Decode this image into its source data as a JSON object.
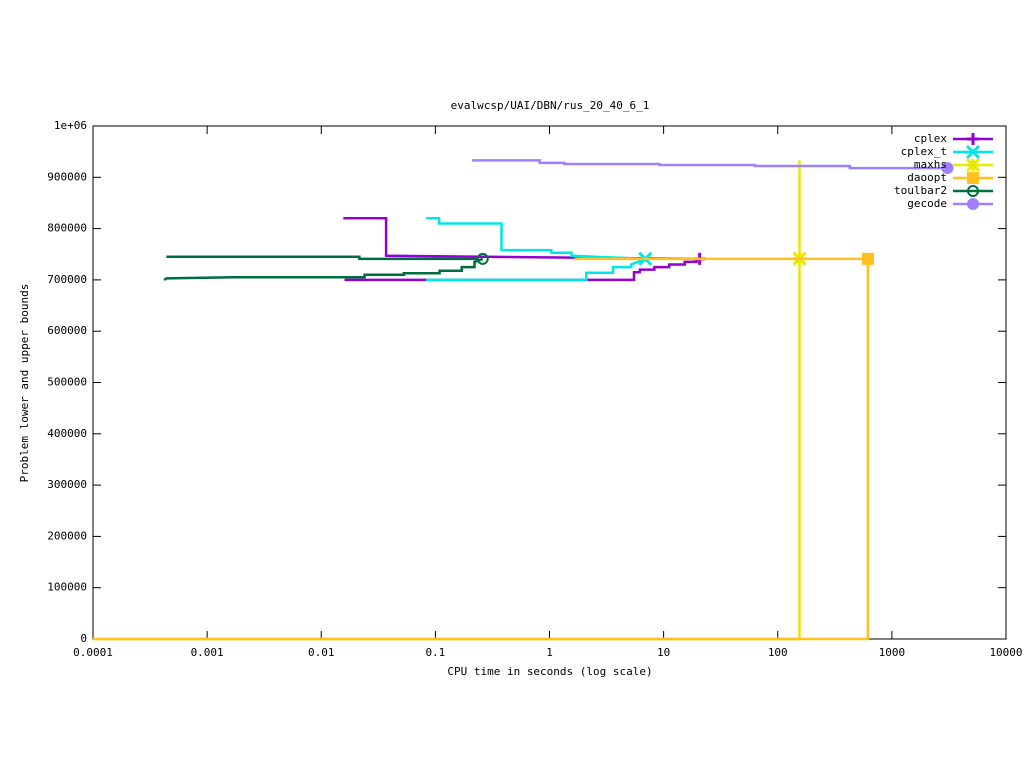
{
  "chart_data": {
    "type": "line",
    "title": "evalwcsp/UAI/DBN/rus_20_40_6_1",
    "x_label": "CPU time in seconds (log scale)",
    "y_label": "Problem lower and upper bounds",
    "xscale": "log",
    "xlim": [
      0.0001,
      10000
    ],
    "ylim": [
      0,
      1000000
    ],
    "xticks": [
      0.0001,
      0.001,
      0.01,
      0.1,
      1,
      10,
      100,
      1000,
      10000
    ],
    "yticks": [
      0,
      100000,
      200000,
      300000,
      400000,
      500000,
      600000,
      700000,
      800000,
      900000,
      {
        "value": 1000000,
        "label": "1e+06"
      }
    ],
    "legend": "top-right",
    "series": [
      {
        "name": "cplex",
        "color": "#9400d3",
        "marker": "plus",
        "x": [
          0.0156,
          0.037,
          0.037,
          20.7,
          null,
          0.016,
          2.2,
          5.5,
          5.5,
          6.2,
          6.2,
          8.3,
          8.3,
          11.2,
          11.2,
          15.3,
          15.3,
          19.5,
          19.5,
          20.7
        ],
        "values": [
          820000,
          820000,
          747000,
          741000,
          null,
          700000,
          700000,
          700000,
          715000,
          715000,
          720000,
          720000,
          725000,
          725000,
          730000,
          730000,
          735000,
          735000,
          740000,
          741000
        ]
      },
      {
        "name": "cplex_t",
        "color": "#00e5e5",
        "marker": "cross",
        "x": [
          0.083,
          0.108,
          0.108,
          0.38,
          0.38,
          1.04,
          1.04,
          1.56,
          1.56,
          6.9,
          null,
          0.083,
          2.1,
          2.1,
          3.6,
          3.6,
          5.2,
          5.2,
          6.9
        ],
        "values": [
          820000,
          820000,
          810000,
          810000,
          758000,
          758000,
          753000,
          753000,
          747000,
          741000,
          null,
          700000,
          700000,
          714000,
          714000,
          725000,
          725000,
          730000,
          741000
        ]
      },
      {
        "name": "maxhs",
        "color": "#e8e800",
        "marker": "star",
        "x": [
          0.0001,
          155,
          155,
          155
        ],
        "values": [
          0,
          0,
          933000,
          741000
        ]
      },
      {
        "name": "daoopt",
        "color": "#ffc020",
        "marker": "square",
        "x": [
          1.66,
          617,
          null,
          0.0001,
          617,
          617
        ],
        "values": [
          741000,
          741000,
          null,
          0,
          0,
          741000
        ]
      },
      {
        "name": "toulbar2",
        "color": "#006f3f",
        "marker": "circle",
        "x": [
          0.00044,
          0.0216,
          0.0216,
          0.24,
          null,
          0.00042,
          0.00044,
          0.0017,
          0.024,
          0.024,
          0.053,
          0.053,
          0.109,
          0.109,
          0.17,
          0.17,
          0.22,
          0.22,
          0.26
        ],
        "values": [
          745000,
          745000,
          741000,
          741000,
          null,
          700000,
          703000,
          705000,
          705000,
          710000,
          710000,
          713000,
          713000,
          718000,
          718000,
          725000,
          725000,
          735000,
          741000
        ]
      },
      {
        "name": "gecode",
        "color": "#a080ff",
        "marker": "dot",
        "x": [
          0.21,
          0.82,
          0.82,
          1.35,
          1.35,
          9.2,
          9.2,
          63,
          63,
          428,
          428,
          3070
        ],
        "values": [
          933000,
          933000,
          928000,
          928000,
          926000,
          926000,
          924000,
          924000,
          922000,
          922000,
          918000,
          918000
        ]
      }
    ]
  }
}
